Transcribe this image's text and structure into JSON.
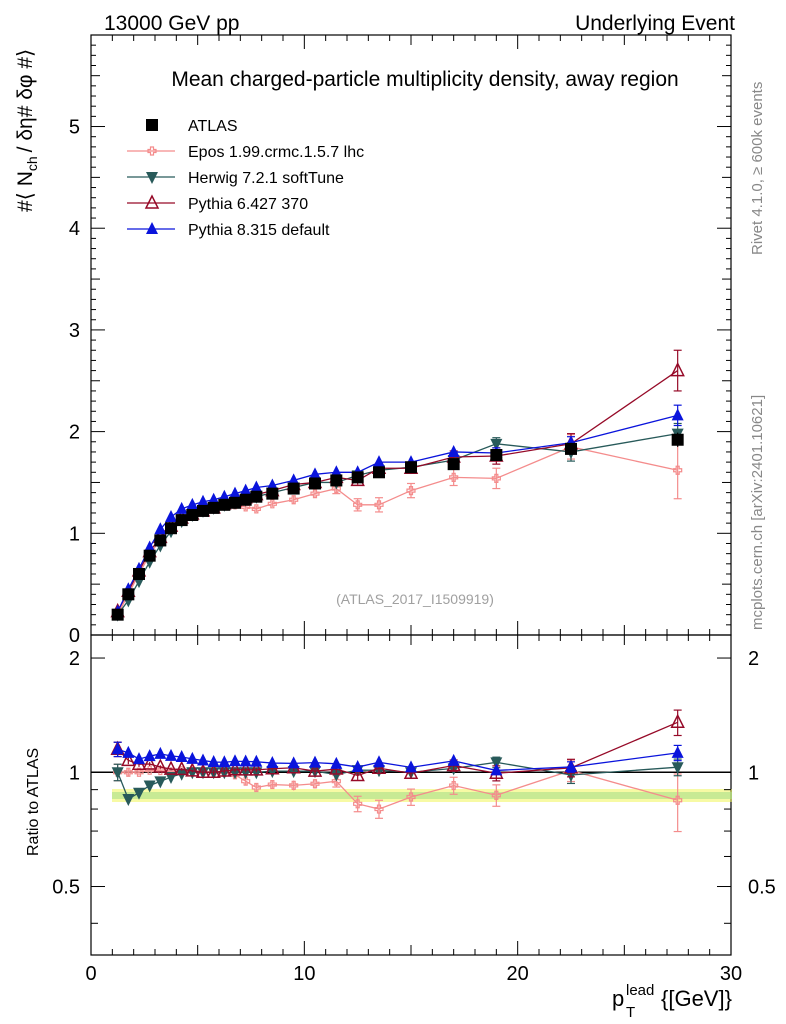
{
  "header": {
    "left": "13000 GeV pp",
    "right": "Underlying Event"
  },
  "side_labels": {
    "rivet": "Rivet 4.1.0, ≥ 600k events",
    "mcplots": "mcplots.cern.ch [arXiv:2401.10621]"
  },
  "watermark": "(ATLAS_2017_I1509919)",
  "chart_data": {
    "type": "scatter",
    "title": "Mean charged-particle multiplicity density, away region",
    "ylabel": "#⟨ N",
    "ylabel_sub": "ch",
    "ylabel_rest": "/ δη# δφ #⟩",
    "xlabel_main": "p",
    "xlabel_sup": "lead",
    "xlabel_sub": "T",
    "xlabel_unit": "{[GeV]}",
    "ratio_ylabel": "Ratio to ATLAS",
    "xlim": [
      0,
      30
    ],
    "ylim": [
      0,
      5.9
    ],
    "ratio_ylim": [
      0.33,
      2.3
    ],
    "xticks": [
      "0",
      "10",
      "20",
      "30"
    ],
    "yticks": [
      "0",
      "1",
      "2",
      "3",
      "4",
      "5"
    ],
    "ratio_yticks": [
      "0.5",
      "1",
      "2"
    ],
    "x": [
      1.25,
      1.75,
      2.25,
      2.75,
      3.25,
      3.75,
      4.25,
      4.75,
      5.25,
      5.75,
      6.25,
      6.75,
      7.25,
      7.75,
      8.5,
      9.5,
      10.5,
      11.5,
      12.5,
      13.5,
      15,
      17,
      19,
      22.5,
      27.5
    ],
    "series": [
      {
        "name": "ATLAS",
        "color": "#000000",
        "marker": "square",
        "values": [
          0.2,
          0.4,
          0.6,
          0.78,
          0.93,
          1.05,
          1.13,
          1.18,
          1.22,
          1.25,
          1.28,
          1.3,
          1.33,
          1.36,
          1.39,
          1.44,
          1.49,
          1.52,
          1.55,
          1.6,
          1.65,
          1.68,
          1.77,
          1.83,
          1.92
        ],
        "errors": [
          0.01,
          0.01,
          0.01,
          0.01,
          0.01,
          0.01,
          0.01,
          0.01,
          0.01,
          0.01,
          0.01,
          0.01,
          0.01,
          0.01,
          0.02,
          0.02,
          0.02,
          0.02,
          0.02,
          0.03,
          0.03,
          0.04,
          0.05,
          0.06,
          0.07
        ]
      },
      {
        "name": "Epos 1.99.crmc.1.5.7 lhc",
        "color": "#f48c8c",
        "marker": "cross",
        "values": [
          0.2,
          0.4,
          0.6,
          0.79,
          0.94,
          1.05,
          1.14,
          1.19,
          1.23,
          1.25,
          1.28,
          1.28,
          1.26,
          1.24,
          1.29,
          1.33,
          1.39,
          1.44,
          1.28,
          1.28,
          1.42,
          1.55,
          1.54,
          1.85,
          1.62
        ],
        "errors": [
          0.01,
          0.01,
          0.01,
          0.01,
          0.01,
          0.01,
          0.01,
          0.02,
          0.02,
          0.02,
          0.02,
          0.03,
          0.03,
          0.03,
          0.03,
          0.04,
          0.04,
          0.05,
          0.06,
          0.07,
          0.07,
          0.08,
          0.1,
          0.12,
          0.28
        ]
      },
      {
        "name": "Herwig 7.2.1 softTune",
        "color": "#285a5a",
        "marker": "triangle-down",
        "values": [
          0.2,
          0.34,
          0.53,
          0.72,
          0.88,
          1.02,
          1.12,
          1.18,
          1.22,
          1.25,
          1.28,
          1.3,
          1.33,
          1.36,
          1.4,
          1.45,
          1.5,
          1.5,
          1.57,
          1.62,
          1.65,
          1.72,
          1.88,
          1.8,
          1.98
        ],
        "errors": [
          0.01,
          0.01,
          0.01,
          0.01,
          0.01,
          0.01,
          0.01,
          0.01,
          0.01,
          0.02,
          0.02,
          0.02,
          0.02,
          0.02,
          0.02,
          0.03,
          0.03,
          0.03,
          0.04,
          0.04,
          0.04,
          0.05,
          0.06,
          0.09,
          0.1
        ]
      },
      {
        "name": "Pythia 6.427 370",
        "color": "#960a28",
        "marker": "triangle-open",
        "values": [
          0.23,
          0.43,
          0.63,
          0.82,
          0.96,
          1.07,
          1.15,
          1.19,
          1.22,
          1.25,
          1.29,
          1.32,
          1.35,
          1.38,
          1.42,
          1.48,
          1.5,
          1.55,
          1.52,
          1.64,
          1.64,
          1.75,
          1.76,
          1.88,
          2.6
        ],
        "errors": [
          0.01,
          0.01,
          0.01,
          0.01,
          0.01,
          0.01,
          0.01,
          0.01,
          0.02,
          0.02,
          0.02,
          0.02,
          0.02,
          0.02,
          0.02,
          0.03,
          0.03,
          0.04,
          0.04,
          0.05,
          0.05,
          0.06,
          0.08,
          0.1,
          0.2
        ]
      },
      {
        "name": "Pythia 8.315 default",
        "color": "#0a14dc",
        "marker": "triangle-up",
        "values": [
          0.23,
          0.45,
          0.65,
          0.86,
          1.04,
          1.16,
          1.24,
          1.28,
          1.31,
          1.33,
          1.36,
          1.39,
          1.42,
          1.45,
          1.47,
          1.52,
          1.58,
          1.6,
          1.6,
          1.7,
          1.7,
          1.8,
          1.79,
          1.89,
          2.16
        ],
        "errors": [
          0.01,
          0.01,
          0.01,
          0.01,
          0.01,
          0.01,
          0.01,
          0.01,
          0.01,
          0.01,
          0.01,
          0.01,
          0.01,
          0.01,
          0.02,
          0.02,
          0.02,
          0.02,
          0.03,
          0.03,
          0.03,
          0.04,
          0.05,
          0.06,
          0.1
        ]
      }
    ]
  }
}
